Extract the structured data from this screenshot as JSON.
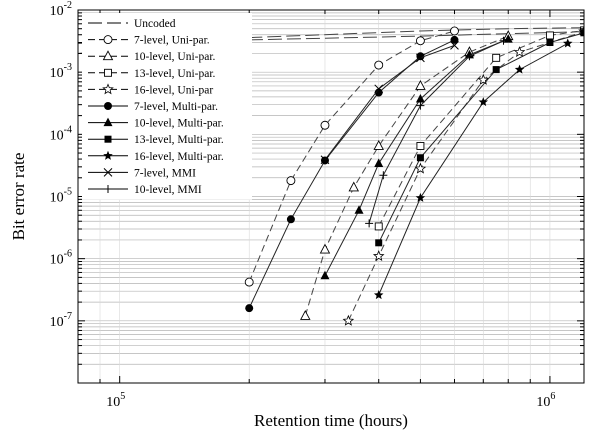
{
  "chart_data": {
    "type": "line",
    "xlabel": "Retention time (hours)",
    "ylabel": "Bit error rate",
    "xscale": "log",
    "yscale": "log",
    "xlim": [
      80000,
      1200000
    ],
    "ylim": [
      1e-08,
      0.01
    ],
    "x_ticks": [
      {
        "value": 100000,
        "mantissa": "10",
        "exp": "5"
      },
      {
        "value": 1000000,
        "mantissa": "10",
        "exp": "6"
      }
    ],
    "y_ticks": [
      {
        "value": 0.01,
        "mantissa": "10",
        "exp": "-2"
      },
      {
        "value": 0.001,
        "mantissa": "10",
        "exp": "-3"
      },
      {
        "value": 0.0001,
        "mantissa": "10",
        "exp": "-4"
      },
      {
        "value": 1e-05,
        "mantissa": "10",
        "exp": "-5"
      },
      {
        "value": 1e-06,
        "mantissa": "10",
        "exp": "-6"
      },
      {
        "value": 1e-07,
        "mantissa": "10",
        "exp": "-7"
      }
    ],
    "grid": true,
    "legend_position": "top-left",
    "series": [
      {
        "name": "Uncoded",
        "dash": "longdash",
        "marker": "none",
        "points": [
          [
            80000,
            0.002
          ],
          [
            200000,
            0.0036
          ],
          [
            500000,
            0.0046
          ],
          [
            800000,
            0.005
          ],
          [
            1200000,
            0.0052
          ]
        ]
      },
      {
        "name": "",
        "dash": "longdash",
        "marker": "none",
        "points": [
          [
            80000,
            0.0029
          ],
          [
            200000,
            0.0033
          ],
          [
            500000,
            0.0038
          ],
          [
            1200000,
            0.0045
          ]
        ]
      },
      {
        "name": "7-level, Uni-par.",
        "dash": "dashed",
        "marker": "circle-open",
        "points": [
          [
            200000,
            4.2e-07
          ],
          [
            250000,
            1.8e-05
          ],
          [
            300000,
            0.00014
          ],
          [
            400000,
            0.0013
          ],
          [
            500000,
            0.0032
          ],
          [
            600000,
            0.0046
          ]
        ]
      },
      {
        "name": "10-level, Uni-par.",
        "dash": "dashed",
        "marker": "triangle-open",
        "points": [
          [
            270000,
            1.2e-07
          ],
          [
            300000,
            1.4e-06
          ],
          [
            350000,
            1.4e-05
          ],
          [
            400000,
            6.5e-05
          ],
          [
            500000,
            0.0006
          ],
          [
            650000,
            0.0021
          ],
          [
            800000,
            0.0038
          ]
        ]
      },
      {
        "name": "13-level, Uni-par.",
        "dash": "dashed",
        "marker": "square-open",
        "points": [
          [
            400000,
            3.3e-06
          ],
          [
            500000,
            6.5e-05
          ],
          [
            750000,
            0.0017
          ],
          [
            1000000,
            0.0039
          ],
          [
            1200000,
            0.0047
          ]
        ]
      },
      {
        "name": "16-level, Uni-par",
        "dash": "dashed",
        "marker": "star-open",
        "points": [
          [
            340000,
            1e-07
          ],
          [
            400000,
            1.1e-06
          ],
          [
            500000,
            2.8e-05
          ],
          [
            700000,
            0.00075
          ],
          [
            850000,
            0.0021
          ],
          [
            1200000,
            0.0045
          ]
        ]
      },
      {
        "name": "7-level, Multi-par.",
        "dash": "solid",
        "marker": "circle-filled",
        "points": [
          [
            200000,
            1.6e-07
          ],
          [
            250000,
            4.3e-06
          ],
          [
            300000,
            3.8e-05
          ],
          [
            400000,
            0.00047
          ],
          [
            500000,
            0.0018
          ],
          [
            600000,
            0.0033
          ]
        ]
      },
      {
        "name": "10-level, Multi-par.",
        "dash": "solid",
        "marker": "triangle-filled",
        "points": [
          [
            300000,
            5.3e-07
          ],
          [
            360000,
            6e-06
          ],
          [
            400000,
            3.4e-05
          ],
          [
            500000,
            0.00037
          ],
          [
            650000,
            0.0019
          ],
          [
            800000,
            0.0034
          ]
        ]
      },
      {
        "name": "13-level, Multi-par.",
        "dash": "solid",
        "marker": "square-filled",
        "points": [
          [
            400000,
            1.8e-06
          ],
          [
            500000,
            4.2e-05
          ],
          [
            750000,
            0.0011
          ],
          [
            1000000,
            0.003
          ],
          [
            1200000,
            0.0043
          ]
        ]
      },
      {
        "name": "16-level, Multi-par.",
        "dash": "solid",
        "marker": "star-filled",
        "points": [
          [
            400000,
            2.6e-07
          ],
          [
            500000,
            9.5e-06
          ],
          [
            700000,
            0.00033
          ],
          [
            850000,
            0.0011
          ],
          [
            1100000,
            0.0029
          ]
        ]
      },
      {
        "name": "7-level, MMI",
        "dash": "solid",
        "marker": "cross",
        "points": [
          [
            300000,
            3.9e-05
          ],
          [
            400000,
            0.00054
          ],
          [
            500000,
            0.0017
          ],
          [
            600000,
            0.0027
          ]
        ]
      },
      {
        "name": "10-level, MMI",
        "dash": "solid",
        "marker": "plus",
        "points": [
          [
            380000,
            3.7e-06
          ],
          [
            410000,
            2.2e-05
          ],
          [
            500000,
            0.00029
          ],
          [
            650000,
            0.0018
          ],
          [
            780000,
            0.0032
          ]
        ]
      }
    ]
  }
}
